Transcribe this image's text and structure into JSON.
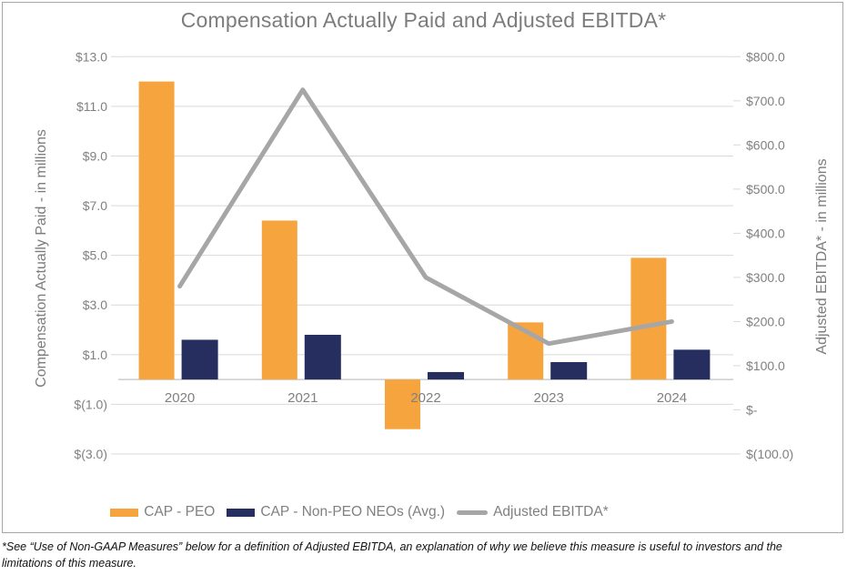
{
  "title": "Compensation Actually Paid and Adjusted EBITDA*",
  "footnote": "*See “Use of Non-GAAP Measures” below for a definition of Adjusted EBITDA, an explanation of why we believe this measure is useful to investors and the limitations of this measure.",
  "colors": {
    "cap_peo": "#f6a53e",
    "cap_non_peo": "#252e5e",
    "ebitda_line": "#a6a6a6",
    "gridline": "#d9d9d9",
    "axis_line": "#cccccc",
    "axis_text": "#808080",
    "title_text": "#7c7c7c",
    "frame_border": "#a6a6a6"
  },
  "left_axis": {
    "title": "Compensation Actually Paid - in millions",
    "ticks": [
      {
        "label": "$13.0",
        "value": 13
      },
      {
        "label": "$11.0",
        "value": 11
      },
      {
        "label": "$9.0",
        "value": 9
      },
      {
        "label": "$7.0",
        "value": 7
      },
      {
        "label": "$5.0",
        "value": 5
      },
      {
        "label": "$3.0",
        "value": 3
      },
      {
        "label": "$1.0",
        "value": 1
      },
      {
        "label": "$(1.0)",
        "value": -1
      },
      {
        "label": "$(3.0)",
        "value": -3
      }
    ]
  },
  "right_axis": {
    "title": "Adjusted EBITDA* - in millions",
    "ticks": [
      {
        "label": "$800.0",
        "value": 800
      },
      {
        "label": "$700.0",
        "value": 700
      },
      {
        "label": "$600.0",
        "value": 600
      },
      {
        "label": "$500.0",
        "value": 500
      },
      {
        "label": "$400.0",
        "value": 400
      },
      {
        "label": "$300.0",
        "value": 300
      },
      {
        "label": "$200.0",
        "value": 200
      },
      {
        "label": "$100.0",
        "value": 100
      },
      {
        "label": "$-",
        "value": 0
      },
      {
        "label": "$(100.0)",
        "value": -100
      }
    ]
  },
  "legend": {
    "items": [
      {
        "label": "CAP - PEO",
        "type": "bar",
        "color_key": "cap_peo"
      },
      {
        "label": "CAP - Non-PEO NEOs (Avg.)",
        "type": "bar",
        "color_key": "cap_non_peo"
      },
      {
        "label": "Adjusted EBITDA*",
        "type": "line",
        "color_key": "ebitda_line"
      }
    ]
  },
  "chart_data": {
    "type": "bar",
    "subtype": "bar+line combo, dual axis",
    "title": "Compensation Actually Paid and Adjusted EBITDA*",
    "categories": [
      "2020",
      "2021",
      "2022",
      "2023",
      "2024"
    ],
    "series": [
      {
        "name": "CAP - PEO",
        "type": "bar",
        "axis": "left",
        "values": [
          12.0,
          6.4,
          -2.0,
          2.3,
          4.9
        ]
      },
      {
        "name": "CAP - Non-PEO NEOs (Avg.)",
        "type": "bar",
        "axis": "left",
        "values": [
          1.6,
          1.8,
          0.3,
          0.7,
          1.2
        ]
      },
      {
        "name": "Adjusted EBITDA*",
        "type": "line",
        "axis": "right",
        "values": [
          280,
          725,
          300,
          150,
          200
        ]
      }
    ],
    "xlabel": "",
    "ylabel_left": "Compensation Actually Paid - in millions",
    "ylabel_right": "Adjusted EBITDA* - in millions",
    "left_ylim": [
      -3,
      13
    ],
    "right_ylim": [
      -100,
      800
    ],
    "grid": true,
    "legend_position": "bottom"
  }
}
